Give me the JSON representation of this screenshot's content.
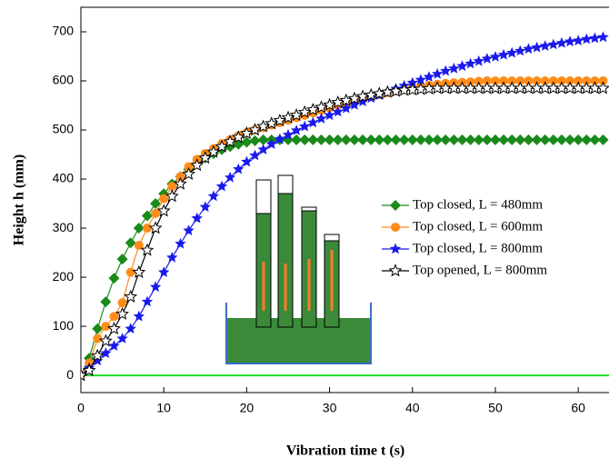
{
  "chart_data": {
    "type": "line",
    "xlabel": "Vibration time t (s)",
    "ylabel": "Height h (mm)",
    "x": [
      0,
      1,
      2,
      3,
      4,
      5,
      6,
      7,
      8,
      9,
      10,
      11,
      12,
      13,
      14,
      15,
      16,
      17,
      18,
      19,
      20,
      21,
      22,
      23,
      24,
      25,
      26,
      27,
      28,
      29,
      30,
      31,
      32,
      33,
      34,
      35,
      36,
      37,
      38,
      39,
      40,
      41,
      42,
      43,
      44,
      45,
      46,
      47,
      48,
      49,
      50,
      51,
      52,
      53,
      54,
      55,
      56,
      57,
      58,
      59,
      60,
      61,
      62,
      63
    ],
    "series": [
      {
        "name": "Top closed, L = 480mm",
        "color": "#1a8a1a",
        "marker": "diamond",
        "values": [
          0,
          35,
          95,
          150,
          198,
          237,
          270,
          300,
          325,
          350,
          370,
          390,
          405,
          420,
          432,
          443,
          452,
          460,
          466,
          471,
          475,
          478,
          480,
          480,
          480,
          480,
          480,
          480,
          480,
          480,
          480,
          480,
          480,
          480,
          480,
          480,
          480,
          480,
          480,
          480,
          480,
          480,
          480,
          480,
          480,
          480,
          480,
          480,
          480,
          480,
          480,
          480,
          480,
          480,
          480,
          480,
          480,
          480,
          480,
          480,
          480,
          480,
          480,
          480
        ]
      },
      {
        "name": "Top closed, L = 600mm",
        "color": "#ff8c1a",
        "marker": "circle",
        "values": [
          0,
          25,
          75,
          100,
          120,
          148,
          210,
          265,
          300,
          330,
          360,
          385,
          405,
          425,
          440,
          452,
          462,
          472,
          480,
          488,
          495,
          500,
          505,
          510,
          515,
          520,
          525,
          530,
          535,
          540,
          545,
          550,
          555,
          560,
          564,
          568,
          572,
          576,
          580,
          583,
          586,
          589,
          591,
          593,
          595,
          596,
          597,
          598,
          599,
          600,
          600,
          600,
          600,
          600,
          600,
          600,
          600,
          600,
          600,
          600,
          600,
          600,
          600,
          600
        ]
      },
      {
        "name": "Top closed, L = 800mm",
        "color": "#1a1aee",
        "marker": "star",
        "values": [
          0,
          15,
          30,
          45,
          60,
          75,
          95,
          120,
          150,
          180,
          210,
          240,
          268,
          295,
          320,
          343,
          365,
          385,
          403,
          420,
          435,
          448,
          460,
          471,
          481,
          490,
          499,
          507,
          515,
          523,
          530,
          537,
          544,
          551,
          558,
          565,
          571,
          578,
          584,
          590,
          596,
          602,
          608,
          614,
          620,
          625,
          630,
          635,
          640,
          645,
          649,
          653,
          657,
          661,
          665,
          668,
          671,
          674,
          677,
          680,
          682,
          685,
          687,
          689
        ]
      },
      {
        "name": "Top opened, L = 800mm",
        "color": "#000000",
        "marker": "open-star",
        "values": [
          0,
          10,
          40,
          70,
          95,
          125,
          160,
          210,
          255,
          300,
          335,
          365,
          390,
          410,
          428,
          443,
          455,
          466,
          476,
          485,
          493,
          500,
          507,
          513,
          519,
          525,
          530,
          536,
          541,
          546,
          551,
          556,
          560,
          564,
          568,
          571,
          574,
          577,
          579,
          581,
          582,
          583,
          584,
          585,
          585,
          585,
          585,
          585,
          585,
          585,
          585,
          585,
          585,
          585,
          585,
          585,
          585,
          585,
          585,
          585,
          585,
          585,
          585,
          585
        ]
      }
    ],
    "hline": {
      "value": 0,
      "color": "#22dd22"
    },
    "xlim": [
      0,
      63.6
    ],
    "ylim": [
      -35,
      750
    ],
    "xticks": [
      0,
      10,
      20,
      30,
      40,
      50,
      60
    ],
    "yticks": [
      0,
      100,
      200,
      300,
      400,
      500,
      600,
      700
    ],
    "legend": "right"
  }
}
